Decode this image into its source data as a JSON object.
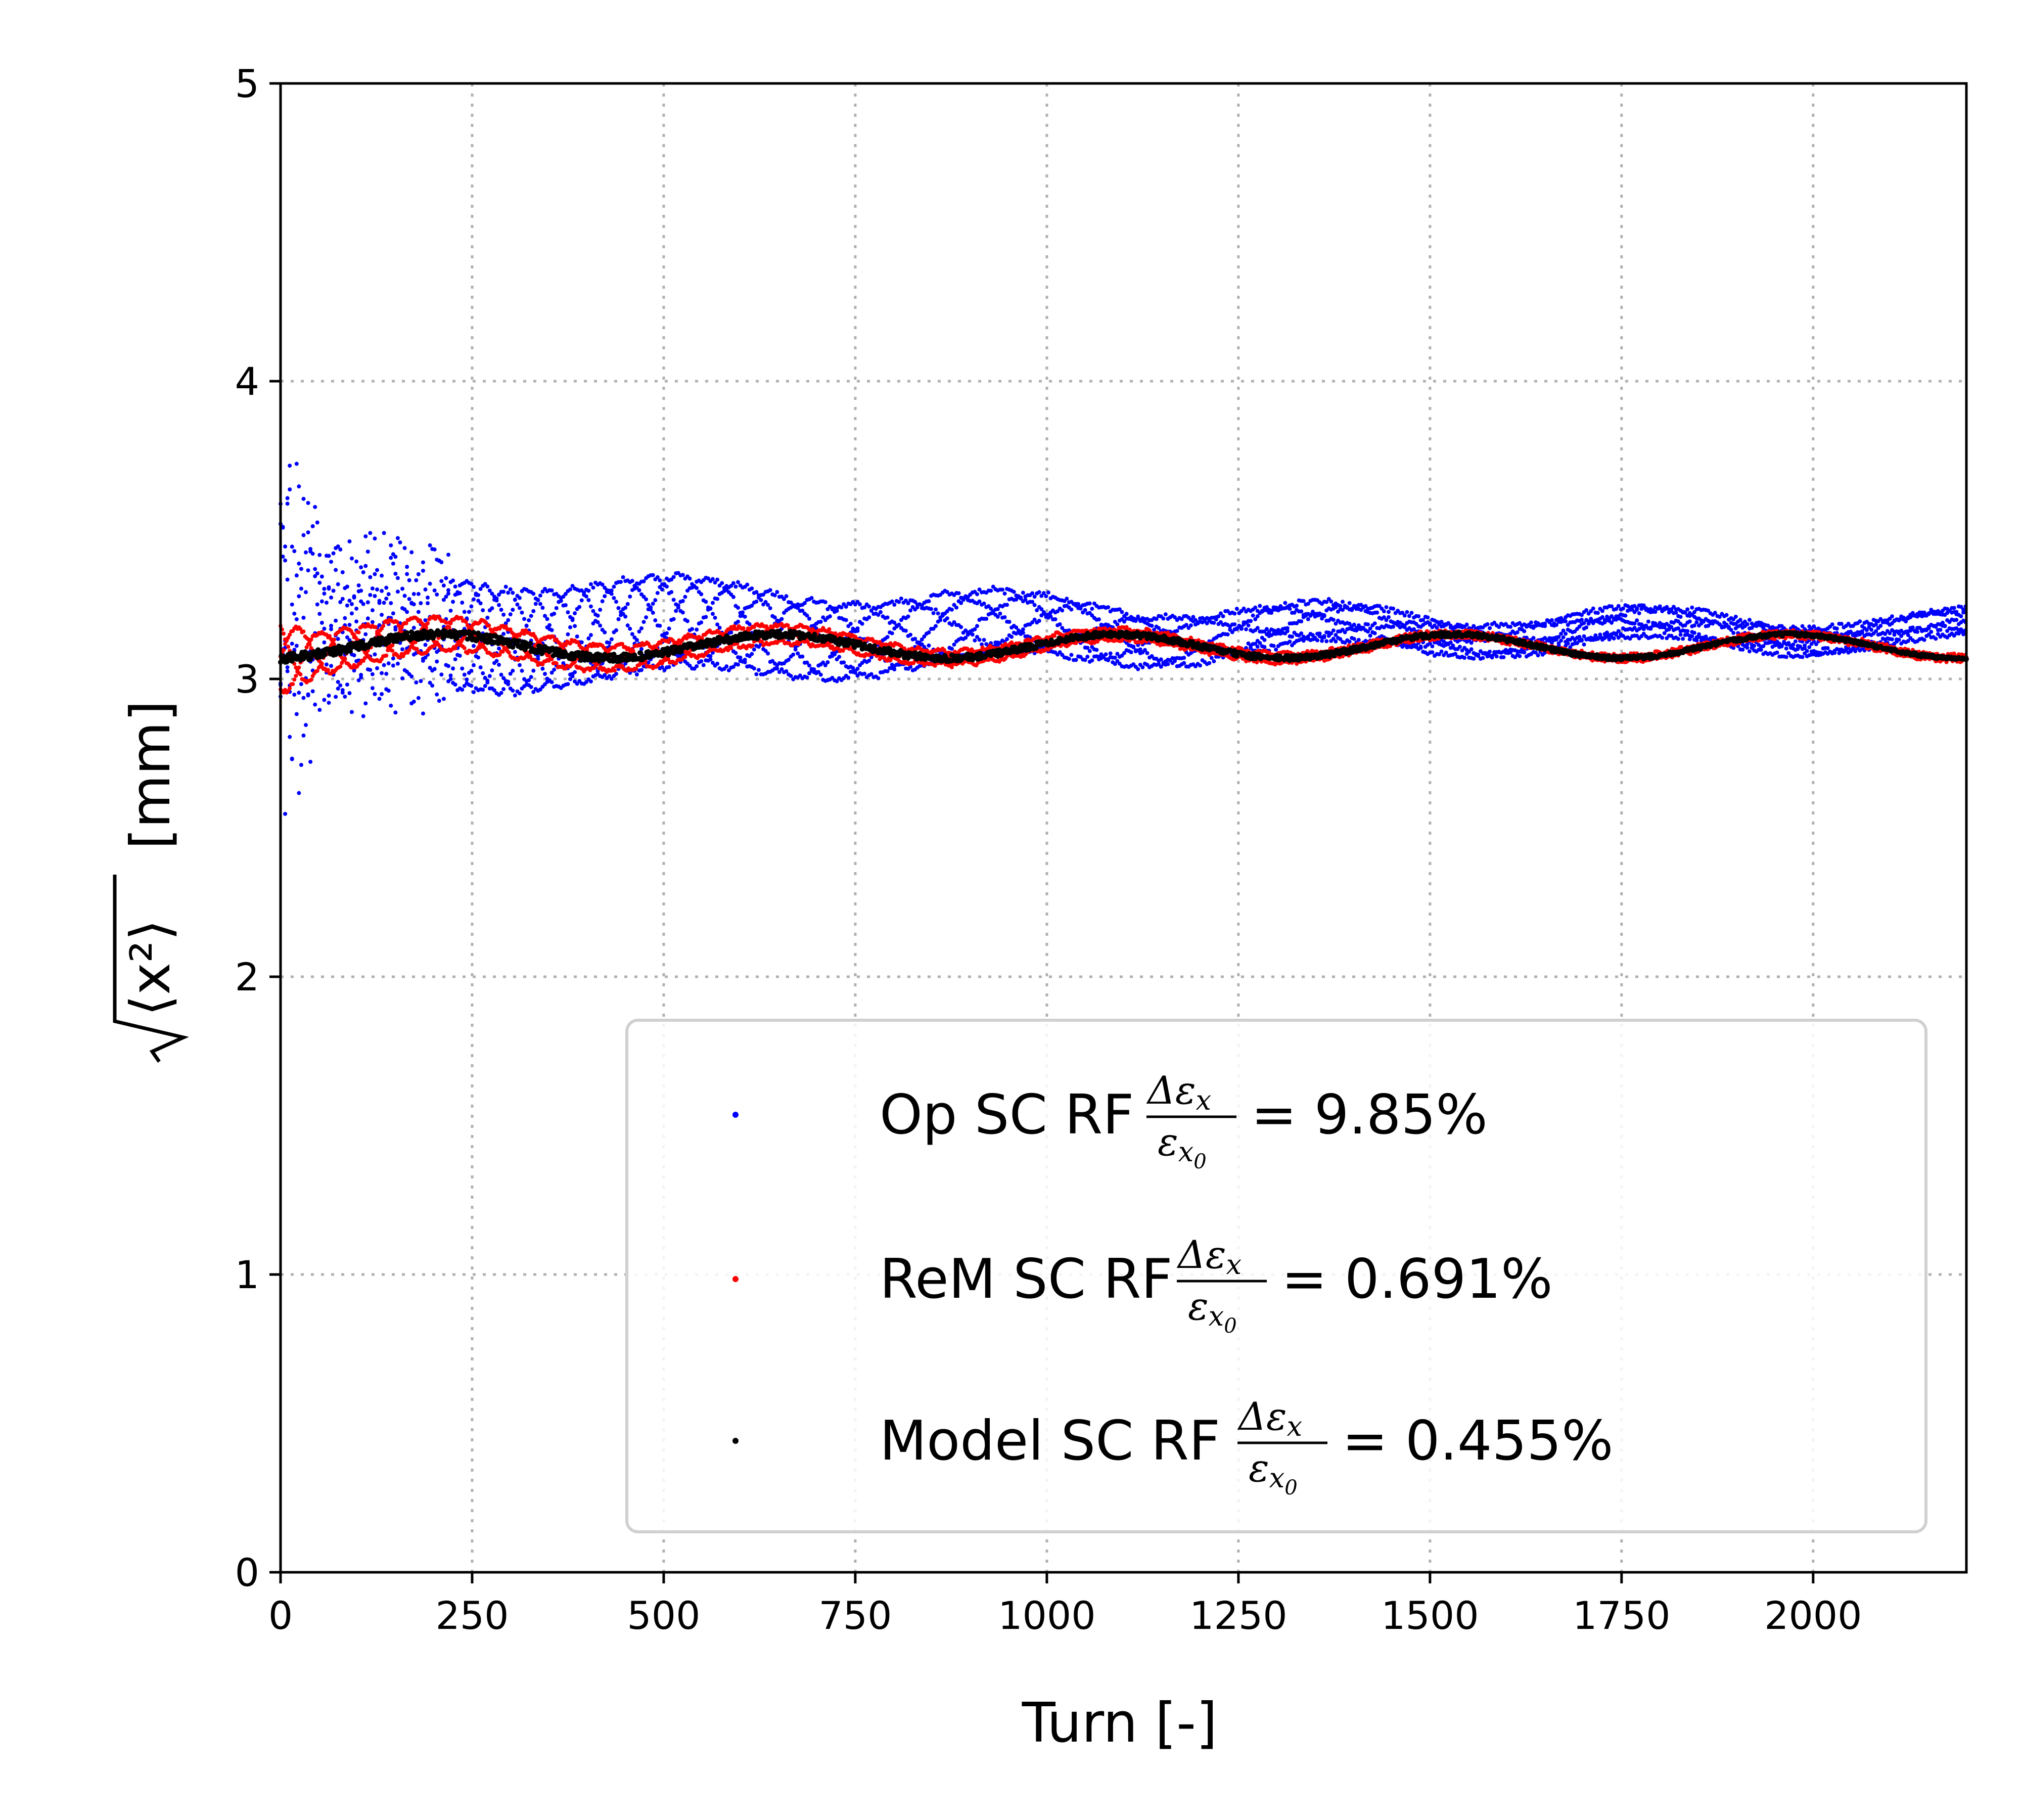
{
  "chart_data": {
    "type": "scatter",
    "xlabel": "Turn [-]",
    "ylabel_sqrt_arg": "⟨x²⟩",
    "ylabel_unit": "[mm]",
    "xlim": [
      0,
      2200
    ],
    "ylim": [
      0,
      5
    ],
    "x_ticks": [
      0,
      250,
      500,
      750,
      1000,
      1250,
      1500,
      1750,
      2000
    ],
    "y_ticks": [
      0,
      1,
      2,
      3,
      4,
      5
    ],
    "grid": true,
    "legend_position": "lower-right",
    "series": [
      {
        "name": "Op SC RF",
        "ratio_label": "= 9.85%",
        "color": "#0000ff",
        "mean": 3.16,
        "envelope": [
          [
            0,
            0.7
          ],
          [
            60,
            0.32
          ],
          [
            300,
            0.28
          ],
          [
            500,
            0.25
          ],
          [
            750,
            0.2
          ],
          [
            1000,
            0.16
          ],
          [
            1250,
            0.12
          ],
          [
            1500,
            0.09
          ],
          [
            1750,
            0.08
          ],
          [
            2200,
            0.07
          ]
        ],
        "strands": 5,
        "x_range": [
          0,
          2200
        ]
      },
      {
        "name": "ReM SC RF",
        "ratio_label": "= 0.691%",
        "color": "#ff0000",
        "mean": 3.11,
        "envelope": [
          [
            0,
            0.12
          ],
          [
            50,
            0.07
          ],
          [
            300,
            0.05
          ],
          [
            700,
            0.03
          ],
          [
            1100,
            0.02
          ],
          [
            1600,
            0.01
          ],
          [
            2200,
            0.01
          ]
        ],
        "strands": 3,
        "x_range": [
          0,
          2200
        ]
      },
      {
        "name": "Model SC RF",
        "ratio_label": "= 0.455%",
        "color": "#000000",
        "mean": 3.11,
        "envelope": [
          [
            0,
            0.03
          ],
          [
            2200,
            0.01
          ]
        ],
        "strands": 1,
        "x_range": [
          0,
          2200
        ]
      }
    ],
    "legend_fraction_num": "Δε",
    "legend_fraction_num_sub": "x",
    "legend_fraction_den": "ε",
    "legend_fraction_den_sub": "x",
    "legend_fraction_den_subsub": "0"
  }
}
